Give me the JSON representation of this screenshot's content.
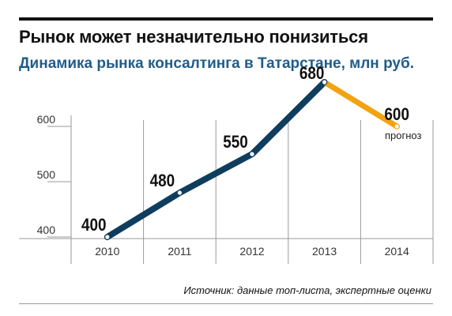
{
  "header": {
    "title": "Рынок может незначительно понизиться",
    "subtitle": "Динамика рынка консалтинга в Татарстане, млн руб."
  },
  "footer": {
    "source": "Источник: данные топ-листа, экспертные оценки"
  },
  "chart_data": {
    "type": "line",
    "title": "Рынок может незначительно понизиться",
    "subtitle": "Динамика рынка консалтинга в Татарстане, млн руб.",
    "xlabel": "",
    "ylabel": "",
    "categories": [
      "2010",
      "2011",
      "2012",
      "2013",
      "2014"
    ],
    "series": [
      {
        "values": [
          400,
          480,
          550,
          680,
          600
        ],
        "color": "#0f3d5e",
        "forecast_color": "#f2a30f"
      }
    ],
    "data_labels": [
      "400",
      "480",
      "550",
      "680",
      "600"
    ],
    "forecast_index": 4,
    "forecast_label": "прогноз",
    "yticks": [
      400,
      500,
      600
    ],
    "ylim": [
      400,
      640
    ],
    "grid": "vertical"
  }
}
